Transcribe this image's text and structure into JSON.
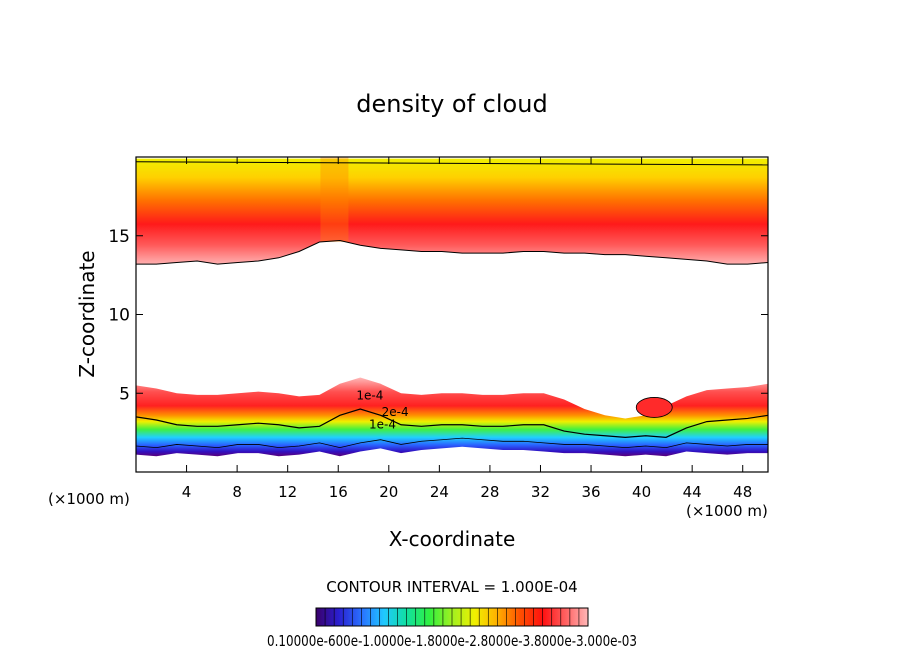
{
  "chart_data": {
    "type": "contour",
    "title": "density of cloud",
    "xlabel": "X-coordinate",
    "ylabel": "Z-coordinate",
    "x_unit": "(×1000 m)",
    "x_unit_right": "(×1000 m)",
    "xlim": [
      0,
      50
    ],
    "ylim": [
      0,
      20
    ],
    "x_ticks": [
      4,
      8,
      12,
      16,
      20,
      24,
      28,
      32,
      36,
      40,
      44,
      48
    ],
    "y_ticks": [
      5,
      10,
      15
    ],
    "contour_interval_text": "CONTOUR INTERVAL = 1.000E-04",
    "contour_labels": [
      "2e-4",
      "1e-4",
      "1e-4"
    ],
    "colorbar_labels_text": "0.10000e-600e-1.0000e-1.8000e-2.8000e-3.8000e-3.000e-03",
    "colorbar_range": [
      0.0001,
      0.003
    ],
    "colors": {
      "colormap": [
        "#3a006a",
        "#2a1fd0",
        "#2a70ff",
        "#20c8ff",
        "#10e0a0",
        "#30f040",
        "#a0f020",
        "#f0f000",
        "#ffb000",
        "#ff5000",
        "#ff1010",
        "#ff6060",
        "#ffb8b8"
      ]
    },
    "upper_band": {
      "base_z": [
        13.2,
        13.2,
        13.3,
        13.4,
        13.2,
        13.3,
        13.4,
        13.6,
        14.0,
        14.6,
        14.7,
        14.4,
        14.2,
        14.1,
        14.0,
        14.0,
        13.9,
        13.9,
        13.9,
        14.0,
        14.0,
        13.9,
        13.9,
        13.8,
        13.8,
        13.7,
        13.6,
        13.5,
        13.4,
        13.2,
        13.2,
        13.3
      ],
      "top_z": 19.9,
      "peak_x": 15.7
    },
    "lower_band": {
      "top_z": [
        5.5,
        5.3,
        5.0,
        4.9,
        4.9,
        5.0,
        5.1,
        5.0,
        4.8,
        4.9,
        5.6,
        6.0,
        5.6,
        5.0,
        4.9,
        5.0,
        5.0,
        4.9,
        4.9,
        5.0,
        5.0,
        4.6,
        4.0,
        3.6,
        3.4,
        3.6,
        4.2,
        4.8,
        5.2,
        5.3,
        5.4,
        5.6
      ],
      "base_z": [
        1.1,
        1.0,
        1.2,
        1.1,
        1.0,
        1.2,
        1.2,
        1.0,
        1.1,
        1.3,
        1.0,
        1.3,
        1.5,
        1.2,
        1.4,
        1.5,
        1.6,
        1.5,
        1.4,
        1.4,
        1.3,
        1.2,
        1.2,
        1.1,
        1.0,
        1.1,
        1.0,
        1.3,
        1.2,
        1.1,
        1.2,
        1.2
      ]
    }
  }
}
